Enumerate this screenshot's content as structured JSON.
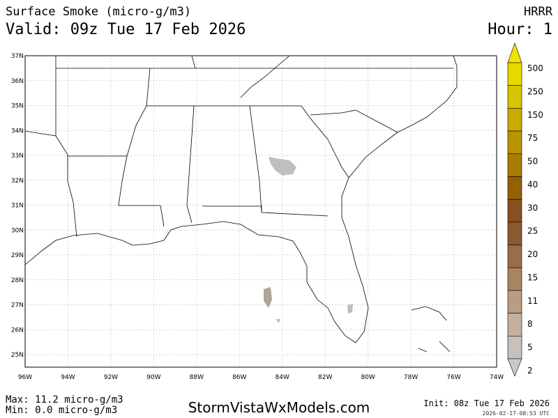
{
  "header": {
    "title": "Surface Smoke (micro-g/m3)",
    "valid": "Valid: 09z Tue 17 Feb 2026",
    "model": "HRRR",
    "hour": "Hour: 1"
  },
  "map": {
    "lat_labels": [
      "37N",
      "36N",
      "35N",
      "34N",
      "33N",
      "32N",
      "31N",
      "30N",
      "29N",
      "28N",
      "27N",
      "26N",
      "25N"
    ],
    "lon_labels": [
      "96W",
      "94W",
      "92W",
      "90W",
      "88W",
      "86W",
      "84W",
      "82W",
      "80W",
      "78W",
      "76W",
      "74W"
    ]
  },
  "colorbar": {
    "labels": [
      "500",
      "250",
      "150",
      "75",
      "50",
      "40",
      "30",
      "25",
      "20",
      "15",
      "11",
      "8",
      "5",
      "2"
    ],
    "colors": [
      "#e8d800",
      "#d8c400",
      "#c8ac00",
      "#b89400",
      "#a87c00",
      "#946000",
      "#8a5020",
      "#8c5a30",
      "#9a6c48",
      "#a88462",
      "#b89c84",
      "#c4b0a2",
      "#c8c0ba"
    ],
    "top_color": "#f0e400",
    "bottom_color": "#c8c8c8"
  },
  "footer": {
    "max": "Max: 11.2 micro-g/m3",
    "min": "Min: 0.0 micro-g/m3",
    "site": "StormVistaWxModels.com",
    "init": "Init: 08z Tue 17 Feb 2026",
    "timestamp": "2026-02-17-08:53 UTC"
  }
}
